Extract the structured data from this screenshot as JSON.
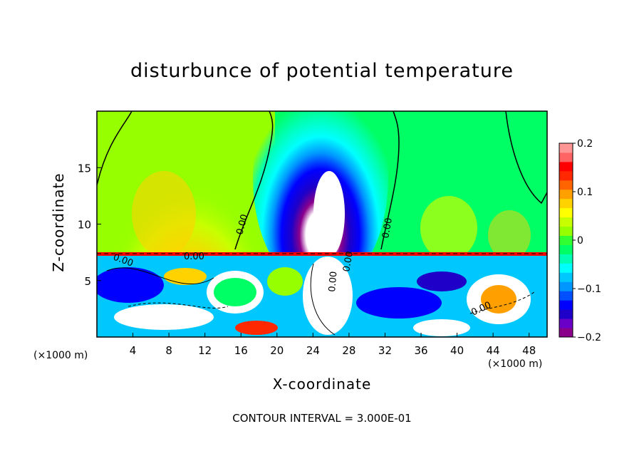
{
  "title": "disturbunce of potential temperature",
  "contour_interval": "CONTOUR INTERVAL = 3.000E-01",
  "x_unit": "(×1000 m)",
  "chart_data": {
    "type": "heatmap",
    "xlabel": "X-coordinate",
    "ylabel": "Z-coordinate",
    "xlim": [
      0,
      50
    ],
    "ylim": [
      0,
      20
    ],
    "x_ticks": [
      4,
      8,
      12,
      16,
      20,
      24,
      28,
      32,
      36,
      40,
      44,
      48
    ],
    "y_ticks": [
      5,
      10,
      15
    ],
    "colorbar": {
      "ticks": [
        {
          "value": 0.2,
          "label": "0.2"
        },
        {
          "value": 0.1,
          "label": "0.1"
        },
        {
          "value": 0,
          "label": "0"
        },
        {
          "value": -0.1,
          "label": "−0.1"
        },
        {
          "value": -0.2,
          "label": "−0.2"
        }
      ],
      "colors": [
        "#8b008b",
        "#6a00c8",
        "#1e00c8",
        "#0000ff",
        "#0050ff",
        "#0096ff",
        "#00c8ff",
        "#00ffff",
        "#00ffb4",
        "#00ff64",
        "#32ff32",
        "#96ff00",
        "#c8ff00",
        "#ffff00",
        "#ffd200",
        "#ffa000",
        "#ff6400",
        "#ff2800",
        "#ff0000",
        "#ff6464",
        "#ff9696"
      ]
    },
    "contour_labels": [
      "0.00",
      "0.00",
      "0.00",
      "0.00",
      "0.00",
      "0.00",
      "0.00"
    ]
  }
}
